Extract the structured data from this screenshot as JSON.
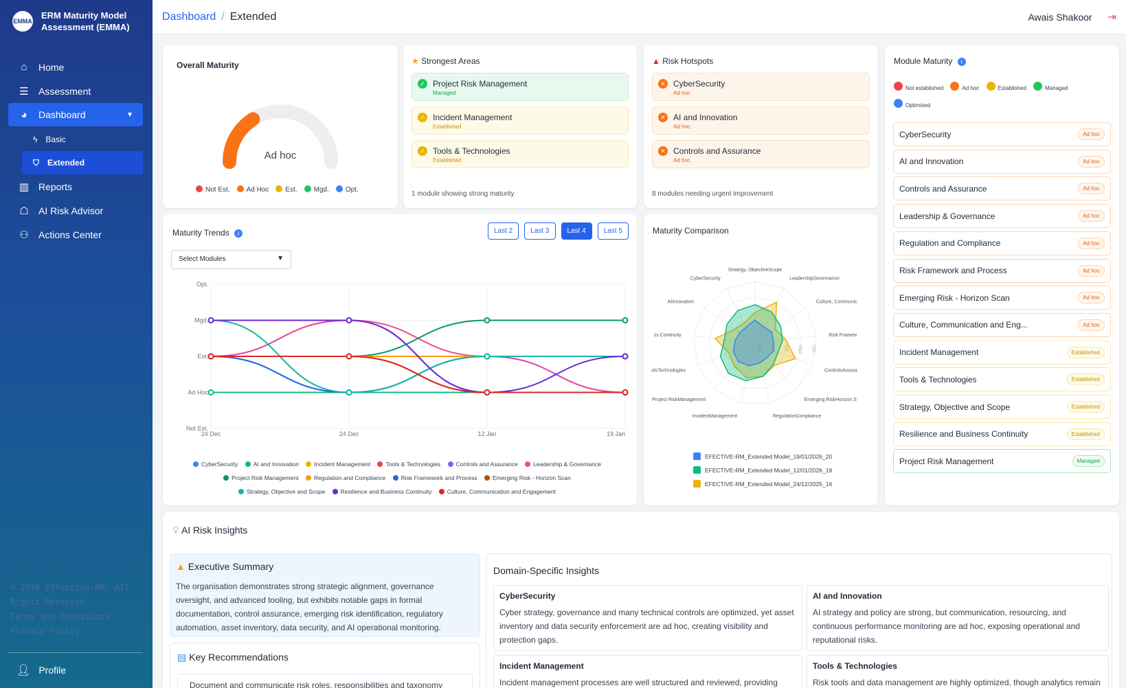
{
  "brand": {
    "logo_text": "EMMA",
    "title_line1": "ERM Maturity Model",
    "title_line2": "Assessment (EMMA)"
  },
  "nav": {
    "home": "Home",
    "assessment": "Assessment",
    "dashboard": "Dashboard",
    "basic": "Basic",
    "extended": "Extended",
    "reports": "Reports",
    "ai_advisor": "AI Risk Advisor",
    "actions": "Actions Center"
  },
  "footer": {
    "line1": "© 2026 Effective-RM. All",
    "line2": "Rights Reserved",
    "terms": "Terms and Conditions",
    "privacy": "Privacy Policy"
  },
  "profile": "Profile",
  "header": {
    "crumb_root": "Dashboard",
    "crumb_sep": "/",
    "crumb_current": "Extended",
    "user": "Awais Shakoor"
  },
  "overall": {
    "title": "Overall Maturity",
    "value_label": "Ad hoc",
    "gauge_fraction": 0.32,
    "legend": [
      "Not Est.",
      "Ad Hoc",
      "Est.",
      "Mgd.",
      "Opt."
    ]
  },
  "colors": {
    "not_est": "#ef4444",
    "adhoc": "#f97316",
    "est": "#eab308",
    "mgd": "#22c55e",
    "opt": "#3b82f6"
  },
  "strongest": {
    "title": "Strongest Areas",
    "items": [
      {
        "name": "Project Risk Management",
        "level": "Managed"
      },
      {
        "name": "Incident Management",
        "level": "Established"
      },
      {
        "name": "Tools & Technologies",
        "level": "Established"
      }
    ],
    "footer": "1 module showing strong maturity"
  },
  "hotspots": {
    "title": "Risk Hotspots",
    "items": [
      {
        "name": "CyberSecurity",
        "level": "Ad hoc"
      },
      {
        "name": "AI and Innovation",
        "level": "Ad hoc"
      },
      {
        "name": "Controls and Assurance",
        "level": "Ad hoc"
      }
    ],
    "footer": "8 modules needing urgent improvement"
  },
  "module_maturity": {
    "title": "Module Maturity",
    "legend": [
      "Not established",
      "Ad hoc",
      "Established",
      "Managed",
      "Optimised"
    ],
    "items": [
      {
        "name": "CyberSecurity",
        "level": "Ad hoc"
      },
      {
        "name": "AI and Innovation",
        "level": "Ad hoc"
      },
      {
        "name": "Controls and Assurance",
        "level": "Ad hoc"
      },
      {
        "name": "Leadership & Governance",
        "level": "Ad hoc"
      },
      {
        "name": "Regulation and Compliance",
        "level": "Ad hoc"
      },
      {
        "name": "Risk Framework and Process",
        "level": "Ad hoc"
      },
      {
        "name": "Emerging Risk - Horizon Scan",
        "level": "Ad hoc"
      },
      {
        "name": "Culture, Communication and Eng...",
        "level": "Ad hoc"
      },
      {
        "name": "Incident Management",
        "level": "Established"
      },
      {
        "name": "Tools & Technologies",
        "level": "Established"
      },
      {
        "name": "Strategy, Objective and Scope",
        "level": "Established"
      },
      {
        "name": "Resilience and Business Continuity",
        "level": "Established"
      },
      {
        "name": "Project Risk Management",
        "level": "Managed"
      }
    ]
  },
  "trends": {
    "title": "Maturity Trends",
    "buttons": [
      "Last 2",
      "Last 3",
      "Last 4",
      "Last 5"
    ],
    "select_placeholder": "Select Modules"
  },
  "comparison": {
    "title": "Maturity Comparison",
    "legend": [
      "EFECTIVE-RM_Extended Model_19/01/2026_20",
      "EFECTIVE-RM_Extended Model_12/01/2026_18",
      "EFECTIVE-RM_Extended Model_24/12/2025_16"
    ]
  },
  "chart_data": [
    {
      "type": "line",
      "x": [
        "24 Dec",
        "24 Dec",
        "12 Jan",
        "19 Jan"
      ],
      "ylim": [
        "Not Est.",
        "Opt."
      ],
      "y_ticks": [
        "Not Est.",
        "Ad Hoc",
        "Est.",
        "Mgd.",
        "Opt."
      ],
      "series": [
        {
          "name": "CyberSecurity",
          "color": "#3b82f6",
          "values": [
            2,
            1,
            2,
            1
          ]
        },
        {
          "name": "AI and Innovation",
          "color": "#10b981",
          "values": [
            1,
            1,
            1,
            1
          ]
        },
        {
          "name": "Incident Management",
          "color": "#eab308",
          "values": [
            2,
            2,
            2,
            2
          ]
        },
        {
          "name": "Tools & Technologies",
          "color": "#ef4444",
          "values": [
            2,
            2,
            1,
            1
          ]
        },
        {
          "name": "Controls and Assurance",
          "color": "#8b5cf6",
          "values": [
            2,
            3,
            1,
            1
          ]
        },
        {
          "name": "Leadership & Governance",
          "color": "#ec4899",
          "values": [
            2,
            3,
            2,
            1
          ]
        },
        {
          "name": "Project Risk Management",
          "color": "#059669",
          "values": [
            2,
            2,
            3,
            3
          ]
        },
        {
          "name": "Regulation and Compliance",
          "color": "#f59e0b",
          "values": [
            2,
            2,
            2,
            2
          ]
        },
        {
          "name": "Risk Framework and Process",
          "color": "#2563eb",
          "values": [
            2,
            1,
            2,
            2
          ]
        },
        {
          "name": "Emerging Risk - Horizon Scan",
          "color": "#b45309",
          "values": [
            2,
            2,
            1,
            1
          ]
        },
        {
          "name": "Strategy, Objective and Scope",
          "color": "#14b8a6",
          "values": [
            3,
            1,
            2,
            2
          ]
        },
        {
          "name": "Resilience and Business Continuity",
          "color": "#6d28d9",
          "values": [
            3,
            3,
            1,
            2
          ]
        },
        {
          "name": "Culture, Communication and Engagement",
          "color": "#dc2626",
          "values": [
            2,
            2,
            1,
            1
          ]
        }
      ]
    },
    {
      "type": "radar",
      "axes": [
        "Strategy, ObjectiveScope",
        "LeadershipGovernance",
        "Culture, Communic",
        "Risk Framew",
        "ControlsAssura",
        "Emerging RiskHorizon S",
        "RegulationCompliance",
        "IncidentManagement",
        "Project RiskManagement",
        "olsTechnologies",
        "ss Continuity",
        "AIinnovation",
        "CyberSecurity"
      ],
      "ring_labels": [
        "Not",
        "Ad",
        "Est",
        "Mgd",
        "Opt"
      ],
      "series": [
        {
          "name": "EFECTIVE-RM_Extended Model_19/01/2026_20",
          "color": "#3b82f6",
          "values": [
            1.5,
            1.2,
            1.3,
            1.2,
            1.3,
            1.2,
            1.3,
            1.5,
            1.6,
            1.5,
            1.3,
            1.2,
            1.2
          ]
        },
        {
          "name": "EFECTIVE-RM_Extended Model_12/01/2026_18",
          "color": "#10b981",
          "values": [
            2.5,
            2.3,
            2.0,
            1.8,
            1.6,
            1.8,
            2.2,
            2.5,
            2.6,
            2.4,
            2.0,
            2.2,
            2.4
          ]
        },
        {
          "name": "EFECTIVE-RM_Extended Model_24/12/2025_16",
          "color": "#eab308",
          "values": [
            2.0,
            3.0,
            1.6,
            2.0,
            2.8,
            1.9,
            2.2,
            2.3,
            2.0,
            1.8,
            2.6,
            1.6,
            1.5
          ]
        }
      ]
    }
  ],
  "insights": {
    "title": "AI Risk Insights",
    "exec_title": "Executive Summary",
    "exec_text": "The organisation demonstrates strong strategic alignment, governance oversight, and advanced tooling, but exhibits notable gaps in formal documentation, control assurance, emerging risk identification, regulatory automation, asset inventory, data security, and AI operational monitoring.",
    "rec_title": "Key Recommendations",
    "rec_first": "Document and communicate risk roles, responsibilities and taxonomy",
    "domain_title": "Domain-Specific Insights",
    "domains": [
      {
        "name": "CyberSecurity",
        "text": "Cyber strategy, governance and many technical controls are optimized, yet asset inventory and data security enforcement are ad hoc, creating visibility and protection gaps."
      },
      {
        "name": "AI and Innovation",
        "text": "AI strategy and policy are strong, but communication, resourcing, and continuous performance monitoring are ad hoc, exposing operational and reputational risks."
      },
      {
        "name": "Incident Management",
        "text": "Incident management processes are well structured and reviewed, providing"
      },
      {
        "name": "Tools & Technologies",
        "text": "Risk tools and data management are highly optimized, though analytics remain"
      }
    ]
  }
}
